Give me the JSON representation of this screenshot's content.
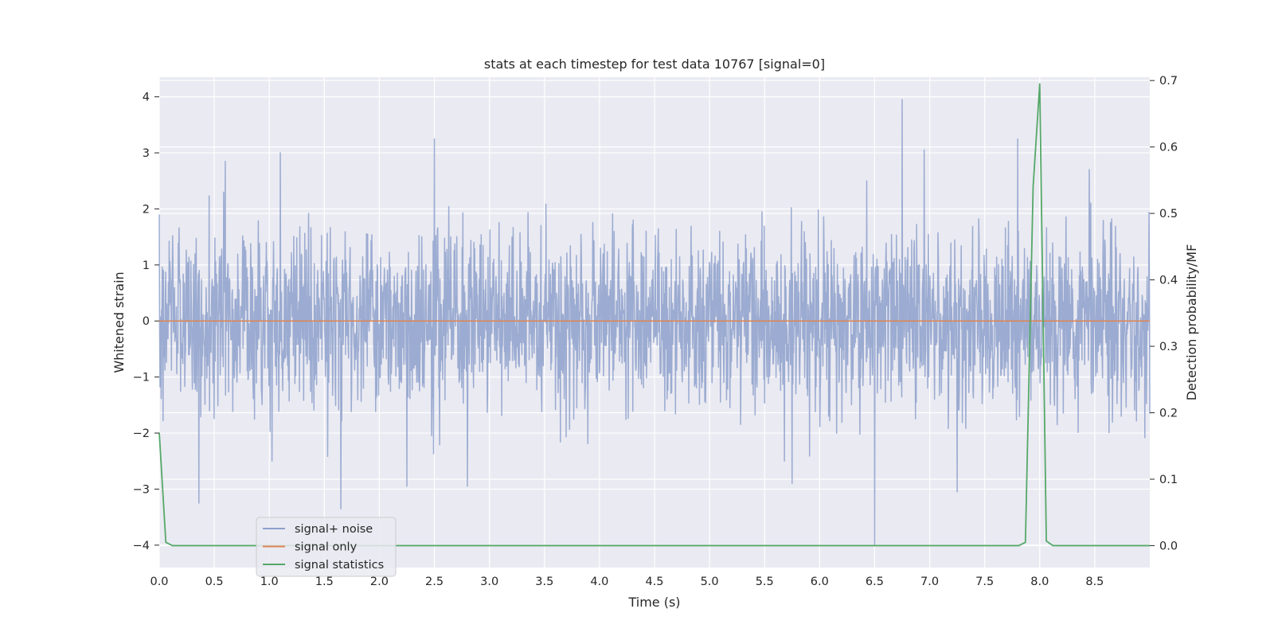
{
  "chart_data": {
    "type": "line",
    "title": "stats at each timestep for test data 10767 [signal=0]",
    "xlabel": "Time (s)",
    "ylabel_left": "Whitened strain",
    "ylabel_right": "Detection probability/MF",
    "xlim": [
      0,
      9.0
    ],
    "ylim_left": [
      -4.4,
      4.35
    ],
    "ylim_right": [
      -0.033,
      0.705
    ],
    "x_ticks": [
      "0.0",
      "0.5",
      "1.0",
      "1.5",
      "2.0",
      "2.5",
      "3.0",
      "3.5",
      "4.0",
      "4.5",
      "5.0",
      "5.5",
      "6.0",
      "6.5",
      "7.0",
      "7.5",
      "8.0",
      "8.5"
    ],
    "y_ticks_left": [
      "4",
      "3",
      "2",
      "1",
      "0",
      "−1",
      "−2",
      "−3",
      "−4"
    ],
    "y_ticks_right": [
      "0.7",
      "0.6",
      "0.5",
      "0.4",
      "0.3",
      "0.2",
      "0.1",
      "0.0"
    ],
    "grid": true,
    "legend_position": "lower-left",
    "colors": {
      "plot_background": "#eaeaf2",
      "grid": "#ffffff",
      "signal_noise": "#8da0cb",
      "signal_only": "#dd8452",
      "signal_statistics": "#55a868"
    },
    "series": [
      {
        "name": "signal+ noise",
        "axis": "left",
        "description_points": {
          "x": [
            0.0,
            0.36,
            0.6,
            1.1,
            1.65,
            2.25,
            2.5,
            2.8,
            5.75,
            6.5,
            6.75,
            6.95,
            7.25,
            7.8,
            8.45
          ],
          "y": [
            1.9,
            -3.25,
            2.85,
            3.0,
            -3.35,
            -2.95,
            3.25,
            -2.95,
            -2.9,
            -4.0,
            3.95,
            3.05,
            -3.05,
            3.25,
            2.7
          ]
        }
      },
      {
        "name": "signal only",
        "axis": "left",
        "x": [
          0.0,
          9.0
        ],
        "y": [
          0.0,
          0.0
        ]
      },
      {
        "name": "signal statistics",
        "axis": "right",
        "x": [
          0.0,
          0.06,
          0.12,
          0.5,
          1.0,
          2.0,
          3.0,
          4.0,
          5.0,
          6.0,
          7.0,
          7.5,
          7.81,
          7.87,
          7.94,
          8.0,
          8.06,
          8.12,
          8.5,
          9.0
        ],
        "y": [
          0.17,
          0.005,
          0.0,
          0.0,
          0.0,
          0.0,
          0.0,
          0.0,
          0.0,
          0.0,
          0.0,
          0.0,
          0.0,
          0.005,
          0.54,
          0.695,
          0.007,
          0.0,
          0.0,
          0.0
        ]
      }
    ]
  }
}
